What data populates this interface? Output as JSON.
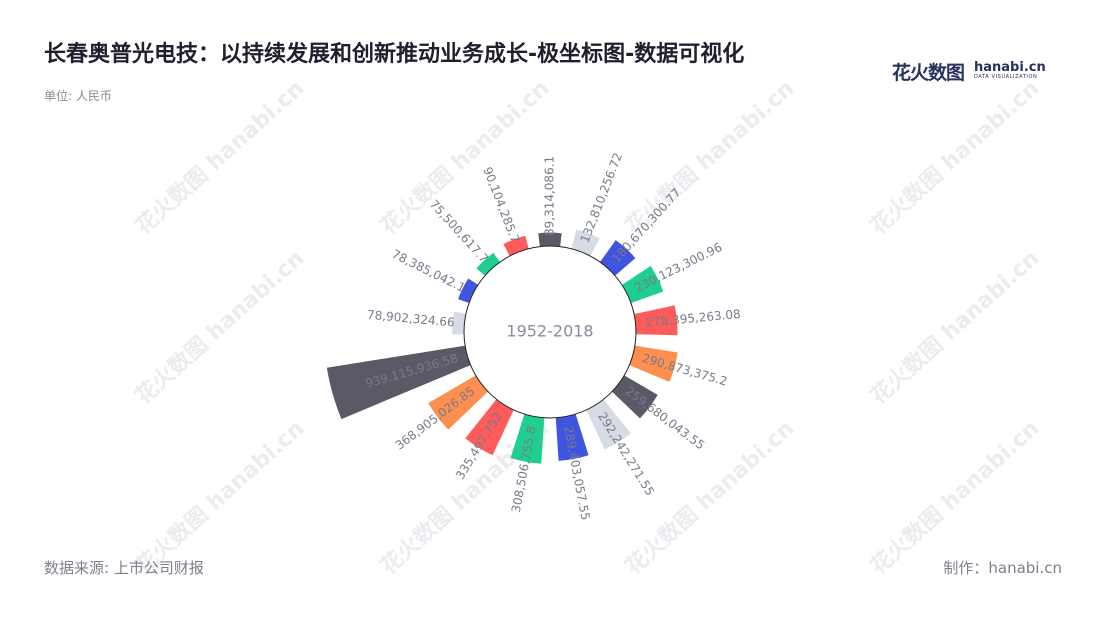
{
  "header": {
    "title": "长春奥普光电技：以持续发展和创新推动业务成长-极坐标图-数据可视化",
    "unit": "单位: 人民币"
  },
  "logo": {
    "cn": "花火数图",
    "en": "hanabi.cn",
    "sub": "DATA VISUALIZATION"
  },
  "watermark_text": "花火数图 hanabi.cn",
  "footer": {
    "source": "数据来源: 上市公司财报",
    "maker": "制作：hanabi.cn"
  },
  "chart_data": {
    "type": "bar",
    "coordinate": "polar",
    "center_label": "1952-2018",
    "values": [
      89314086.1,
      132810256.72,
      180670300.77,
      230123300.96,
      278395263.08,
      290873375.2,
      259680043.55,
      292242271.55,
      289403057.55,
      308506755.8,
      335497752.0,
      368905026.85,
      939115936.58,
      78902324.66,
      78385042.1,
      75500617.7,
      90104285.7
    ],
    "labels": [
      "89,314,086.1",
      "132,810,256.72",
      "180,670,300.77",
      "230,123,300.96",
      "278,395,263.08",
      "290,873,375.2",
      "259,680,043.55",
      "292,242,271.55",
      "289,403,057.55",
      "308,506,755.8",
      "335,497,752",
      "368,905,026.85",
      "939,115,936.58",
      "78,902,324.66",
      "78,385,042.1",
      "75,500,617.7",
      "90,104,285.7"
    ],
    "colors": [
      "#5a5a66",
      "#d6dbe6",
      "#3f55e0",
      "#1ecf8f",
      "#ff5b5b",
      "#ff8f4f"
    ]
  }
}
